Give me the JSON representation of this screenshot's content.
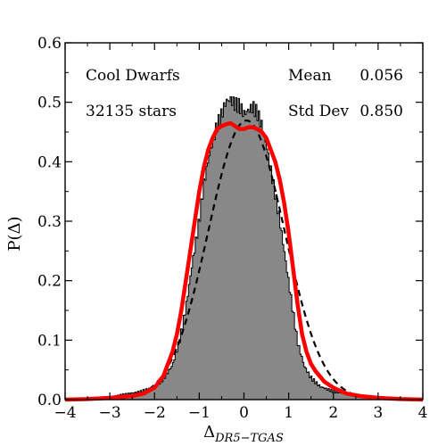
{
  "chart_data": {
    "type": "histogram",
    "xlabel": {
      "main": "Δ",
      "sub": "DR5−TGAS"
    },
    "ylabel": "P(Δ)",
    "xlim": [
      -4,
      4
    ],
    "ylim": [
      0,
      0.6
    ],
    "x_ticks": [
      "−4",
      "−3",
      "−2",
      "−1",
      "0",
      "1",
      "2",
      "3",
      "4"
    ],
    "y_ticks": [
      "0.0",
      "0.1",
      "0.2",
      "0.3",
      "0.4",
      "0.5",
      "0.6"
    ],
    "annotations": {
      "group_name": "Cool Dwarfs",
      "star_count": "32135 stars",
      "mean_label": "Mean",
      "mean_value": "0.056",
      "std_label": "Std Dev",
      "std_value": "0.850"
    },
    "histogram_envelope": {
      "x": [
        -4,
        -3.5,
        -3,
        -2.6,
        -2.3,
        -2.0,
        -1.8,
        -1.6,
        -1.45,
        -1.3,
        -1.15,
        -1.0,
        -0.9,
        -0.8,
        -0.7,
        -0.6,
        -0.5,
        -0.4,
        -0.3,
        -0.2,
        -0.1,
        0.0,
        0.1,
        0.2,
        0.3,
        0.4,
        0.5,
        0.6,
        0.7,
        0.8,
        0.9,
        1.0,
        1.1,
        1.2,
        1.35,
        1.5,
        1.7,
        2.0,
        2.3,
        2.6,
        3.0,
        3.5,
        4.0
      ],
      "y": [
        0.0,
        0.002,
        0.004,
        0.008,
        0.012,
        0.02,
        0.035,
        0.06,
        0.1,
        0.16,
        0.24,
        0.31,
        0.37,
        0.41,
        0.44,
        0.465,
        0.48,
        0.5,
        0.5,
        0.49,
        0.485,
        0.47,
        0.475,
        0.48,
        0.47,
        0.45,
        0.42,
        0.38,
        0.34,
        0.3,
        0.25,
        0.2,
        0.15,
        0.1,
        0.06,
        0.04,
        0.025,
        0.015,
        0.01,
        0.006,
        0.003,
        0.001,
        0.0
      ]
    },
    "series": [
      {
        "style": "red-solid",
        "x": [
          -4,
          -3.5,
          -3,
          -2.5,
          -2.25,
          -2.0,
          -1.8,
          -1.6,
          -1.5,
          -1.4,
          -1.3,
          -1.2,
          -1.1,
          -1.0,
          -0.9,
          -0.8,
          -0.7,
          -0.6,
          -0.5,
          -0.4,
          -0.3,
          -0.2,
          -0.1,
          0.0,
          0.1,
          0.2,
          0.3,
          0.4,
          0.5,
          0.6,
          0.7,
          0.8,
          0.9,
          1.0,
          1.1,
          1.2,
          1.3,
          1.4,
          1.5,
          1.6,
          1.8,
          2.0,
          2.3,
          2.6,
          3.0,
          3.5,
          4.0
        ],
        "y": [
          0.0,
          0.001,
          0.003,
          0.006,
          0.01,
          0.02,
          0.04,
          0.08,
          0.11,
          0.15,
          0.2,
          0.25,
          0.3,
          0.35,
          0.39,
          0.42,
          0.44,
          0.455,
          0.46,
          0.463,
          0.465,
          0.46,
          0.455,
          0.455,
          0.458,
          0.458,
          0.455,
          0.45,
          0.44,
          0.42,
          0.4,
          0.37,
          0.33,
          0.28,
          0.22,
          0.16,
          0.11,
          0.08,
          0.06,
          0.048,
          0.03,
          0.02,
          0.01,
          0.006,
          0.003,
          0.001,
          0.0
        ]
      },
      {
        "style": "black-dashed",
        "function": "normal",
        "mean": 0.056,
        "std": 0.85,
        "x_range": [
          -2.8,
          2.8
        ]
      }
    ],
    "colors": {
      "histogram_fill": "#888888",
      "histogram_edge": "#000000",
      "fit_line": "#ff0000",
      "gaussian_line": "#000000"
    }
  }
}
